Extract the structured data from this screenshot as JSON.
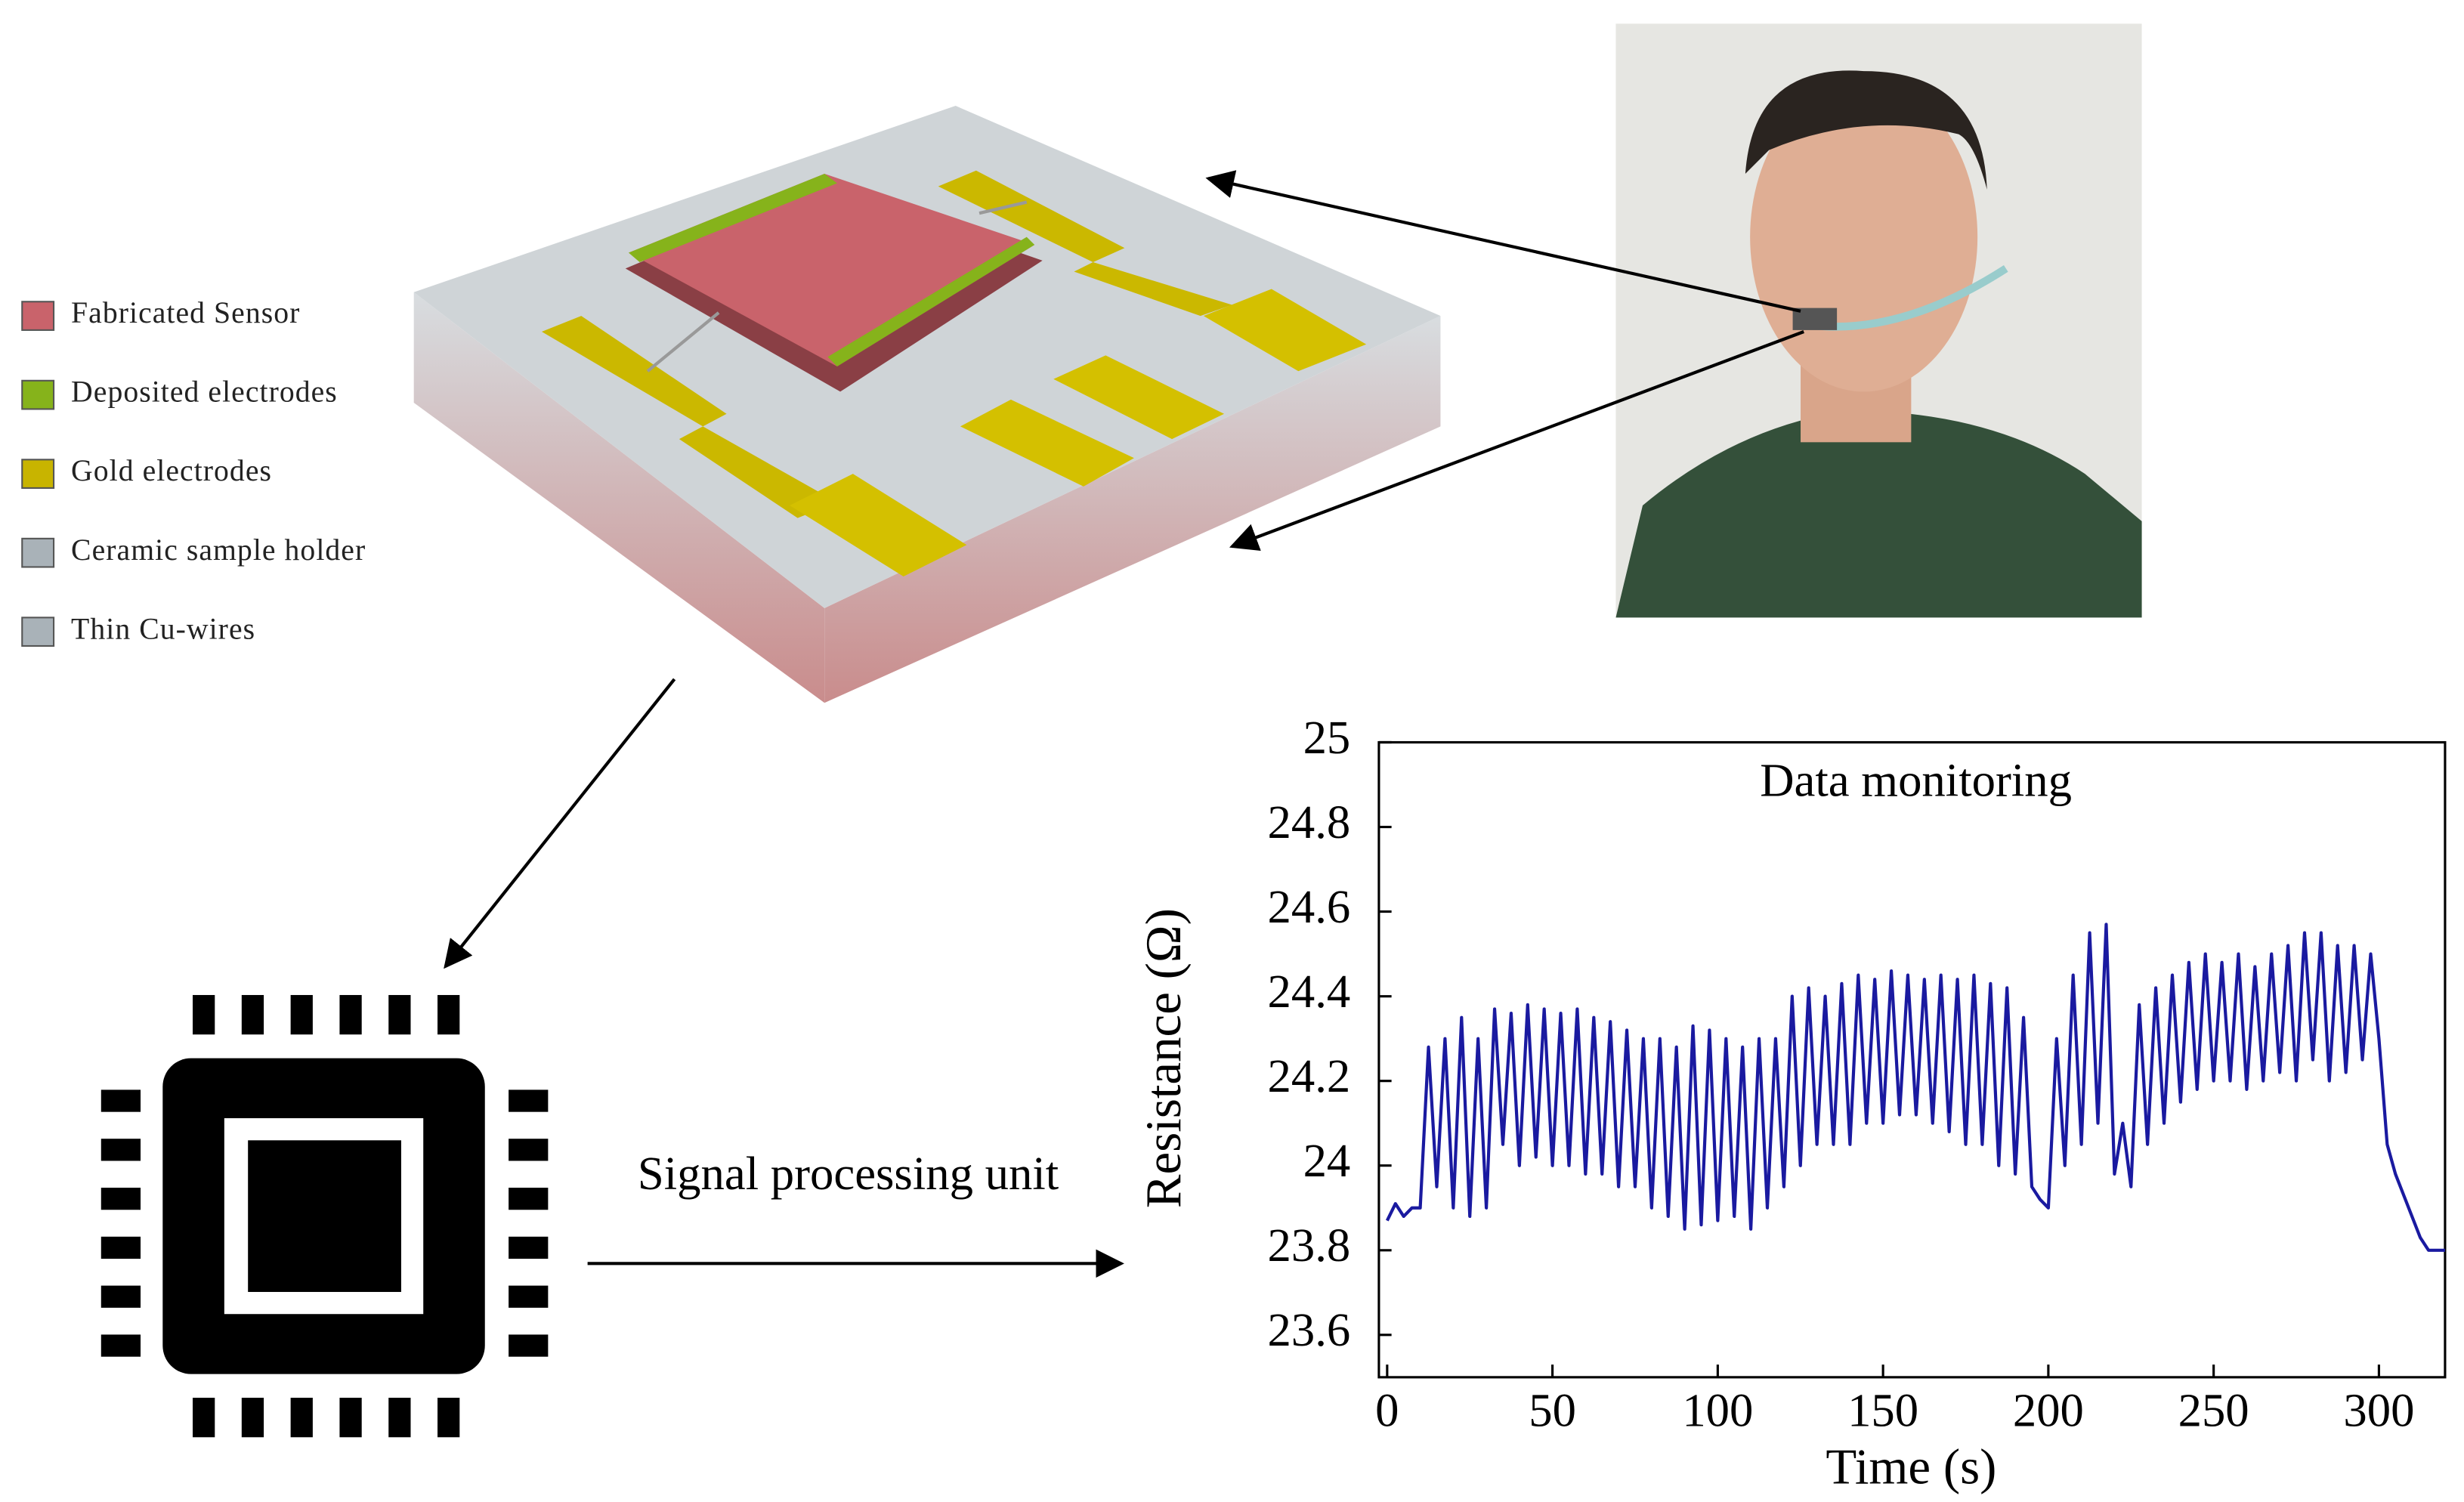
{
  "legend": [
    {
      "label": "Fabricated Sensor",
      "color": "#c9636b"
    },
    {
      "label": "Deposited electrodes",
      "color": "#86b31b"
    },
    {
      "label": "Gold electrodes",
      "color": "#c8b400"
    },
    {
      "label": "Ceramic sample holder",
      "color": "#a9b2b8"
    },
    {
      "label": "Thin Cu-wires",
      "color": "#a9b2b8"
    }
  ],
  "signal_label": "Signal processing unit",
  "chart_data": {
    "type": "line",
    "title": "Data monitoring",
    "x_label": "Time (s)",
    "y_label": "Resistance (Ω)",
    "xlim": [
      -2.5,
      320
    ],
    "ylim": [
      23.5,
      25
    ],
    "xticks": [
      0,
      50,
      100,
      150,
      200,
      250,
      300
    ],
    "yticks": [
      23.6,
      23.8,
      24,
      24.2,
      24.4,
      24.6,
      24.8,
      25
    ],
    "series": [
      {
        "color": "#1a1aa0",
        "x": [
          0,
          2.5,
          5,
          7.5,
          10,
          12.5,
          15,
          17.5,
          20,
          22.5,
          25,
          27.5,
          30,
          32.5,
          35,
          37.5,
          40,
          42.5,
          45,
          47.5,
          50,
          52.5,
          55,
          57.5,
          60,
          62.5,
          65,
          67.5,
          70,
          72.5,
          75,
          77.5,
          80,
          82.5,
          85,
          87.5,
          90,
          92.5,
          95,
          97.5,
          100,
          102.5,
          105,
          107.5,
          110,
          112.5,
          115,
          117.5,
          120,
          122.5,
          125,
          127.5,
          130,
          132.5,
          135,
          137.5,
          140,
          142.5,
          145,
          147.5,
          150,
          152.5,
          155,
          157.5,
          160,
          162.5,
          165,
          167.5,
          170,
          172.5,
          175,
          177.5,
          180,
          182.5,
          185,
          187.5,
          190,
          192.5,
          195,
          197.5,
          200,
          202.5,
          205,
          207.5,
          210,
          212.5,
          215,
          217.5,
          220,
          222.5,
          225,
          227.5,
          230,
          232.5,
          235,
          237.5,
          240,
          242.5,
          245,
          247.5,
          250,
          252.5,
          255,
          257.5,
          260,
          262.5,
          265,
          267.5,
          270,
          272.5,
          275,
          277.5,
          280,
          282.5,
          285,
          287.5,
          290,
          292.5,
          295,
          297.5,
          300,
          302.5,
          305,
          307.5,
          310,
          312.5,
          315,
          317.5,
          320
        ],
        "values": [
          23.87,
          23.91,
          23.88,
          23.9,
          23.9,
          24.28,
          23.95,
          24.3,
          23.9,
          24.35,
          23.88,
          24.3,
          23.9,
          24.37,
          24.05,
          24.36,
          24.0,
          24.38,
          24.02,
          24.37,
          24.0,
          24.36,
          24.0,
          24.37,
          23.98,
          24.35,
          23.98,
          24.34,
          23.95,
          24.32,
          23.95,
          24.3,
          23.9,
          24.3,
          23.88,
          24.28,
          23.85,
          24.33,
          23.86,
          24.32,
          23.87,
          24.3,
          23.88,
          24.28,
          23.85,
          24.3,
          23.9,
          24.3,
          23.95,
          24.4,
          24.0,
          24.42,
          24.05,
          24.4,
          24.05,
          24.43,
          24.05,
          24.45,
          24.1,
          24.44,
          24.1,
          24.46,
          24.12,
          24.45,
          24.12,
          24.44,
          24.1,
          24.45,
          24.08,
          24.44,
          24.05,
          24.45,
          24.05,
          24.43,
          24.0,
          24.42,
          23.98,
          24.35,
          23.95,
          23.92,
          23.9,
          24.3,
          24.0,
          24.45,
          24.05,
          24.55,
          24.1,
          24.57,
          23.98,
          24.1,
          23.95,
          24.38,
          24.05,
          24.42,
          24.1,
          24.45,
          24.15,
          24.48,
          24.18,
          24.5,
          24.2,
          24.48,
          24.2,
          24.5,
          24.18,
          24.47,
          24.2,
          24.5,
          24.22,
          24.52,
          24.2,
          24.55,
          24.25,
          24.55,
          24.2,
          24.52,
          24.22,
          24.52,
          24.25,
          24.5,
          24.3,
          24.05,
          23.98,
          23.93,
          23.88,
          23.83,
          23.8,
          23.8,
          23.8
        ]
      }
    ]
  }
}
